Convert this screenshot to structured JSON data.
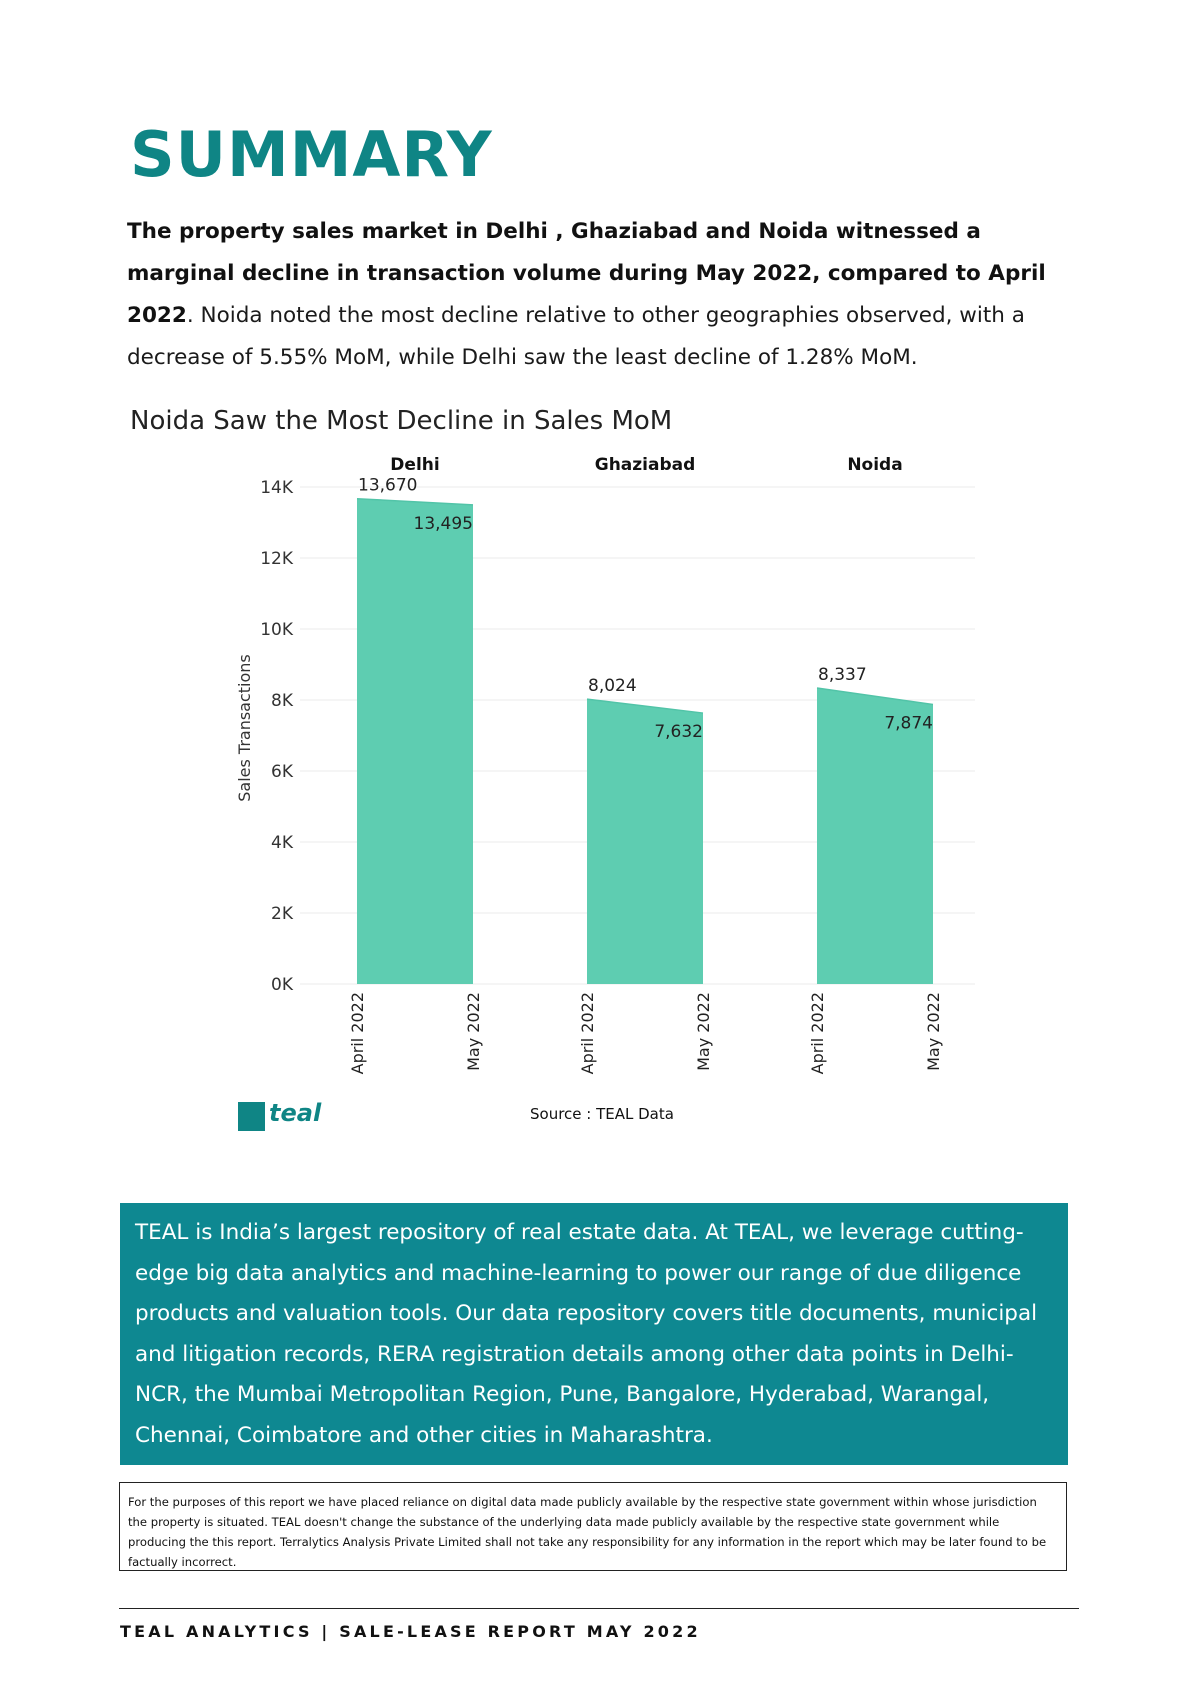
{
  "page": {
    "title": "SUMMARY",
    "summary_bold": "The property sales market in Delhi , Ghaziabad and Noida witnessed a marginal decline in transaction volume during May 2022, compared to April 2022",
    "summary_rest": ". Noida noted the most decline relative to other geographies observed, with a decrease of 5.55% MoM, while Delhi saw the least decline of 1.28% MoM.",
    "chart_title": "Noida Saw the Most Decline in Sales MoM",
    "source": "Source : TEAL Data",
    "logo_text": "teal",
    "about": " TEAL is India’s largest repository of real estate data. At TEAL, we leverage cutting-edge big data analytics and machine-learning to power our range of due diligence products and valuation tools. Our data repository covers title documents, municipal and litigation records, RERA registration details among other data points in Delhi-NCR, the Mumbai Metropolitan Region, Pune, Bangalore, Hyderabad, Warangal, Chennai, Coimbatore and other cities in Maharashtra.",
    "disclaimer": "For the purposes of this report we have placed reliance on digital data made publicly available by the respective state government within whose jurisdiction the property is situated. TEAL doesn't change the substance of the underlying data made publicly available by the respective state government while producing the this report. Terralytics Analysis Private Limited shall not take any responsibility for any information in the report which may be later found to be factually incorrect.",
    "footer": "TEAL ANALYTICS | SALE-LEASE REPORT MAY 2022"
  },
  "colors": {
    "accent": "#0f8585",
    "area_fill": "#5ecdb1",
    "about_bg": "#0e8891"
  },
  "chart_data": {
    "type": "area",
    "title": "Noida Saw the Most Decline in Sales MoM",
    "ylabel": "Sales Transactions",
    "xlabel": "",
    "ylim": [
      0,
      14000
    ],
    "yticks": [
      0,
      2000,
      4000,
      6000,
      8000,
      10000,
      12000,
      14000
    ],
    "ytick_labels": [
      "0K",
      "2K",
      "4K",
      "6K",
      "8K",
      "10K",
      "12K",
      "14K"
    ],
    "grid": true,
    "panels": [
      {
        "name": "Delhi",
        "x": [
          "April 2022",
          "May 2022"
        ],
        "values": [
          13670,
          13495
        ],
        "labels": [
          "13,670",
          "13,495"
        ]
      },
      {
        "name": "Ghaziabad",
        "x": [
          "April 2022",
          "May 2022"
        ],
        "values": [
          8024,
          7632
        ],
        "labels": [
          "8,024",
          "7,632"
        ]
      },
      {
        "name": "Noida",
        "x": [
          "April 2022",
          "May 2022"
        ],
        "values": [
          8337,
          7874
        ],
        "labels": [
          "8,337",
          "7,874"
        ]
      }
    ]
  }
}
